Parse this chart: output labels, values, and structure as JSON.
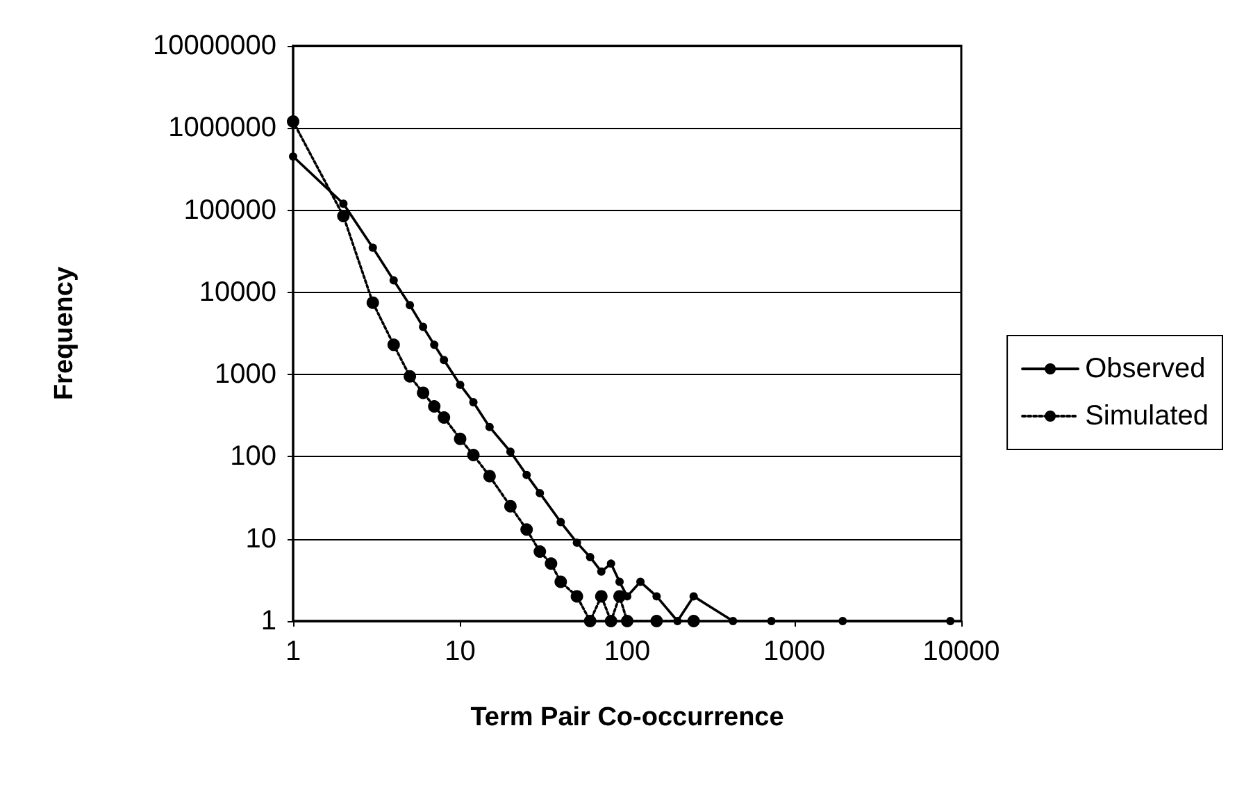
{
  "chart_data": {
    "type": "line",
    "xlabel": "Term Pair Co-occurrence",
    "ylabel": "Frequency",
    "log": "xy",
    "xlim": [
      1,
      10000
    ],
    "ylim": [
      1,
      10000000
    ],
    "xticks": [
      1,
      10,
      100,
      1000,
      10000
    ],
    "yticks": [
      1,
      10,
      100,
      1000,
      10000,
      100000,
      1000000,
      10000000
    ],
    "grid": "y",
    "legend": "right",
    "marker": "circle",
    "series": [
      {
        "name": "Observed",
        "color": "#000000",
        "line_style": "solid",
        "x": [
          1,
          2,
          3,
          4,
          5,
          6,
          7,
          8,
          10,
          12,
          15,
          20,
          25,
          30,
          40,
          50,
          60,
          70,
          80,
          90,
          100,
          120,
          150,
          200,
          250,
          430,
          730,
          1950,
          8600
        ],
        "values": [
          450000,
          120000,
          35000,
          14000,
          7000,
          3800,
          2300,
          1500,
          750,
          460,
          230,
          115,
          60,
          36,
          16,
          9,
          6,
          4,
          5,
          3,
          2,
          3,
          2,
          1,
          2,
          1,
          1,
          1,
          1
        ]
      },
      {
        "name": "Simulated",
        "color": "#000000",
        "line_style": "dotted",
        "x": [
          1,
          2,
          3,
          4,
          5,
          6,
          7,
          8,
          10,
          12,
          15,
          20,
          25,
          30,
          35,
          40,
          50,
          60,
          70,
          80,
          90,
          100,
          150,
          250
        ],
        "values": [
          1200000,
          85000,
          7500,
          2300,
          950,
          600,
          410,
          300,
          165,
          105,
          58,
          25,
          13,
          7,
          5,
          3,
          2,
          1,
          2,
          1,
          2,
          1,
          1,
          1
        ]
      }
    ]
  }
}
